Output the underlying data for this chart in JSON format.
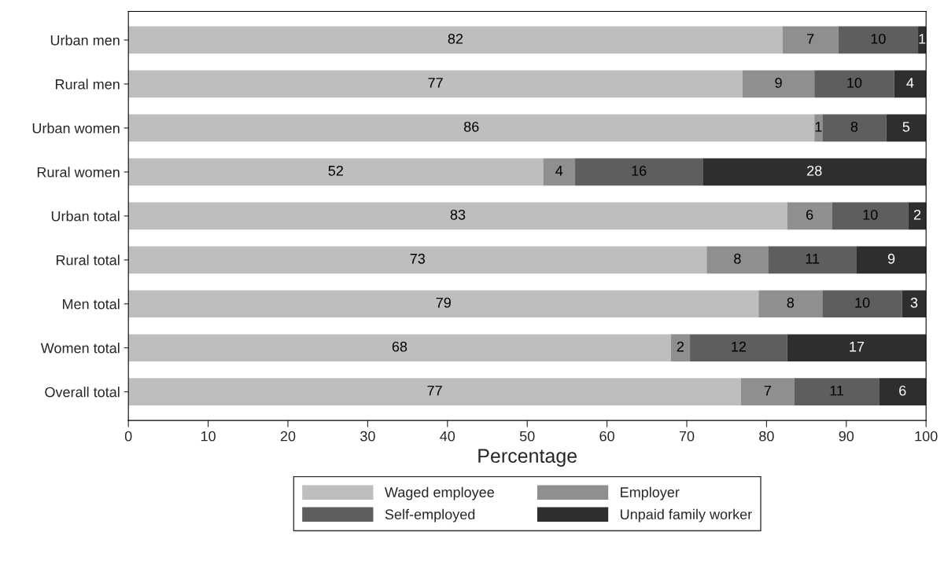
{
  "chart_data": {
    "type": "bar",
    "orientation": "horizontal",
    "stacked": true,
    "categories": [
      "Urban men",
      "Rural men",
      "Urban women",
      "Rural women",
      "Urban total",
      "Rural total",
      "Men total",
      "Women total",
      "Overall total"
    ],
    "series": [
      {
        "name": "Waged employee",
        "color": "#bebebe",
        "values": [
          82,
          77,
          86,
          52,
          82.6,
          72.5,
          79,
          68,
          76.8
        ],
        "value_labels": [
          "82",
          "77",
          "86",
          "52",
          "83",
          "73",
          "79",
          "68",
          "77"
        ]
      },
      {
        "name": "Employer",
        "color": "#8f8f8f",
        "values": [
          7,
          9,
          1,
          4,
          5.6,
          7.7,
          8,
          2.4,
          6.7
        ],
        "value_labels": [
          "7",
          "9",
          "1",
          "4",
          "6",
          "8",
          "8",
          "2",
          "7"
        ]
      },
      {
        "name": "Self-employed",
        "color": "#5e5e5e",
        "values": [
          10,
          10,
          8,
          16,
          9.6,
          11.1,
          10,
          12.2,
          10.6
        ],
        "value_labels": [
          "10",
          "10",
          "8",
          "16",
          "10",
          "11",
          "10",
          "12",
          "11"
        ]
      },
      {
        "name": "Unpaid family worker",
        "color": "#2e2e2e",
        "values": [
          1,
          4,
          5,
          28,
          2.2,
          8.7,
          3,
          17.4,
          5.9
        ],
        "value_labels": [
          "1",
          "4",
          "5",
          "28",
          "2",
          "9",
          "3",
          "17",
          "6"
        ]
      }
    ],
    "xlabel": "Percentage",
    "xlim": [
      0,
      100
    ],
    "xticks": [
      0,
      10,
      20,
      30,
      40,
      50,
      60,
      70,
      80,
      90,
      100
    ],
    "grid": false,
    "legend": "bottom"
  }
}
